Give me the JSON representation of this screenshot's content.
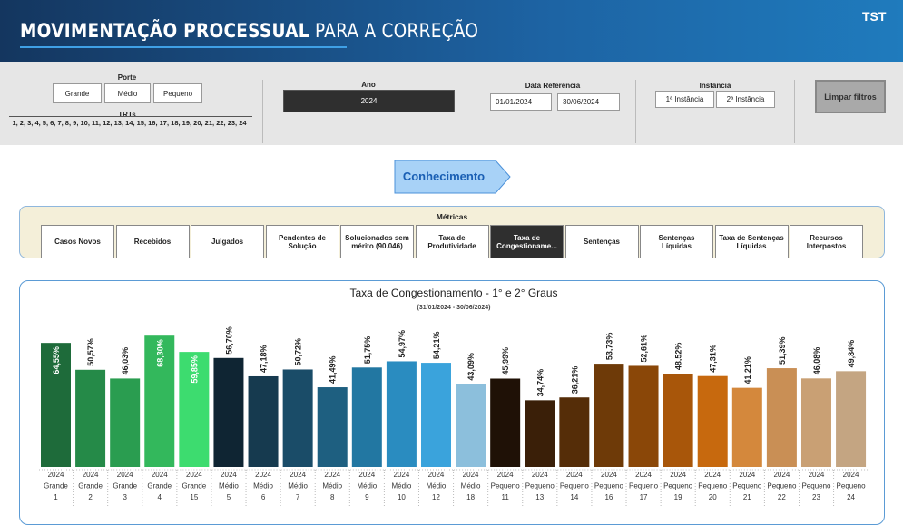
{
  "header": {
    "title_bold": "MOVIMENTAÇÃO PROCESSUAL",
    "title_rest": "PARA A CORREÇÃO",
    "logo": "TST"
  },
  "filters": {
    "porte": {
      "label": "Porte",
      "options": [
        "Grande",
        "Médio",
        "Pequeno"
      ]
    },
    "trts": {
      "label": "TRTs",
      "value": "1, 2, 3, 4, 5, 6, 7, 8, 9, 10, 11, 12, 13, 14, 15, 16, 17, 18, 19, 20, 21, 22, 23, 24"
    },
    "ano": {
      "label": "Ano",
      "value": "2024"
    },
    "data_referencia": {
      "label": "Data Referência",
      "start": "01/01/2024",
      "end": "30/06/2024"
    },
    "instancia": {
      "label": "Instância",
      "options": [
        "1ª Instância",
        "2ª Instância"
      ]
    },
    "clear": "Limpar filtros"
  },
  "section": "Conhecimento",
  "metrics": {
    "title": "Métricas",
    "selected": 6,
    "buttons": [
      "Casos Novos",
      "Recebidos",
      "Julgados",
      "Pendentes de Solução",
      "Solucionados sem mérito (90.046)",
      "Taxa de Produtividade",
      "Taxa de Congestioname...",
      "Sentenças",
      "Sentenças Líquidas",
      "Taxa de Sentenças Líquidas",
      "Recursos Interpostos"
    ]
  },
  "chart_data": {
    "type": "bar",
    "title": "Taxa de Congestionamento - 1° e 2° Graus",
    "subtitle": "(31/01/2024 - 30/06/2024)",
    "categories": [
      "1",
      "2",
      "3",
      "4",
      "15",
      "5",
      "6",
      "7",
      "8",
      "9",
      "10",
      "12",
      "18",
      "11",
      "13",
      "14",
      "16",
      "17",
      "19",
      "20",
      "21",
      "22",
      "23",
      "24"
    ],
    "years": [
      "2024",
      "2024",
      "2024",
      "2024",
      "2024",
      "2024",
      "2024",
      "2024",
      "2024",
      "2024",
      "2024",
      "2024",
      "2024",
      "2024",
      "2024",
      "2024",
      "2024",
      "2024",
      "2024",
      "2024",
      "2024",
      "2024",
      "2024",
      "2024"
    ],
    "groups": [
      "Grande",
      "Grande",
      "Grande",
      "Grande",
      "Grande",
      "Médio",
      "Médio",
      "Médio",
      "Médio",
      "Médio",
      "Médio",
      "Médio",
      "Médio",
      "Pequeno",
      "Pequeno",
      "Pequeno",
      "Pequeno",
      "Pequeno",
      "Pequeno",
      "Pequeno",
      "Pequeno",
      "Pequeno",
      "Pequeno",
      "Pequeno"
    ],
    "values": [
      64.55,
      50.57,
      46.03,
      68.3,
      59.85,
      56.7,
      47.18,
      50.72,
      41.49,
      51.75,
      54.97,
      54.21,
      43.09,
      45.99,
      34.74,
      36.21,
      53.73,
      52.61,
      48.52,
      47.31,
      41.21,
      51.39,
      46.08,
      49.84
    ],
    "value_labels": [
      "64,55%",
      "50,57%",
      "46,03%",
      "68,30%",
      "59,85%",
      "56,70%",
      "47,18%",
      "50,72%",
      "41,49%",
      "51,75%",
      "54,97%",
      "54,21%",
      "43,09%",
      "45,99%",
      "34,74%",
      "36,21%",
      "53,73%",
      "52,61%",
      "48,52%",
      "47,31%",
      "41,21%",
      "51,39%",
      "46,08%",
      "49,84%"
    ],
    "colors": [
      "#1e6b3a",
      "#258a48",
      "#2a9d50",
      "#33b85c",
      "#3ddc6f",
      "#0f2533",
      "#163a4f",
      "#1a4c68",
      "#1e5f80",
      "#2277a2",
      "#2a8cc0",
      "#3aa3dc",
      "#8cbfdc",
      "#1f1106",
      "#3a1f08",
      "#552d08",
      "#6e3a08",
      "#8a4708",
      "#a8560a",
      "#c7690e",
      "#d4883c",
      "#c98f55",
      "#c9a074",
      "#c4a582"
    ]
  }
}
